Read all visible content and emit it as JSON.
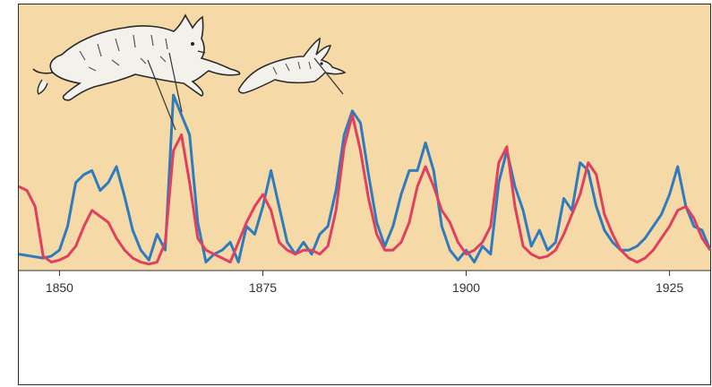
{
  "chart_data": {
    "type": "line",
    "title": "",
    "xlabel": "",
    "ylabel": "",
    "xlim": [
      1845,
      1930
    ],
    "ylim": [
      0,
      100
    ],
    "grid": false,
    "background_color": "#f5d9a6",
    "x_ticks": [
      {
        "value": 1850,
        "label": "1850"
      },
      {
        "value": 1875,
        "label": "1875"
      },
      {
        "value": 1900,
        "label": "1900"
      },
      {
        "value": 1925,
        "label": "1925"
      }
    ],
    "illustrations": [
      "lynx-illustration",
      "hare-illustration"
    ],
    "series": [
      {
        "color": "#2f7bbf",
        "x": [
          1845,
          1848,
          1849,
          1850,
          1851,
          1852,
          1853,
          1854,
          1855,
          1856,
          1857,
          1858,
          1859,
          1860,
          1861,
          1862,
          1863,
          1864,
          1865,
          1866,
          1867,
          1868,
          1869,
          1870,
          1871,
          1872,
          1873,
          1874,
          1875,
          1876,
          1877,
          1878,
          1879,
          1880,
          1881,
          1882,
          1883,
          1884,
          1885,
          1886,
          1887,
          1888,
          1889,
          1890,
          1891,
          1892,
          1893,
          1894,
          1895,
          1896,
          1897,
          1898,
          1899,
          1900,
          1901,
          1902,
          1903,
          1904,
          1905,
          1906,
          1907,
          1908,
          1909,
          1910,
          1911,
          1912,
          1913,
          1914,
          1915,
          1916,
          1917,
          1918,
          1919,
          1920,
          1921,
          1922,
          1923,
          1924,
          1925,
          1926,
          1927,
          1928,
          1929,
          1930
        ],
        "values": [
          6,
          4,
          5,
          8,
          20,
          42,
          46,
          48,
          38,
          42,
          50,
          35,
          18,
          8,
          3,
          16,
          8,
          86,
          76,
          66,
          22,
          2,
          6,
          8,
          12,
          2,
          20,
          16,
          30,
          48,
          30,
          12,
          6,
          12,
          6,
          16,
          20,
          38,
          66,
          78,
          72,
          46,
          22,
          10,
          20,
          36,
          48,
          48,
          62,
          48,
          20,
          8,
          3,
          8,
          2,
          10,
          6,
          42,
          58,
          40,
          28,
          10,
          18,
          8,
          12,
          34,
          28,
          52,
          48,
          30,
          18,
          12,
          8,
          8,
          10,
          14,
          20,
          26,
          36,
          50,
          30,
          20,
          18,
          8
        ]
      },
      {
        "color": "#e0405f",
        "x": [
          1845,
          1846,
          1847,
          1848,
          1849,
          1850,
          1851,
          1852,
          1853,
          1854,
          1855,
          1856,
          1857,
          1858,
          1859,
          1860,
          1861,
          1862,
          1863,
          1864,
          1865,
          1866,
          1867,
          1868,
          1869,
          1870,
          1871,
          1872,
          1873,
          1874,
          1875,
          1876,
          1877,
          1878,
          1879,
          1880,
          1881,
          1882,
          1883,
          1884,
          1885,
          1886,
          1887,
          1888,
          1889,
          1890,
          1891,
          1892,
          1893,
          1894,
          1895,
          1896,
          1897,
          1898,
          1899,
          1900,
          1901,
          1902,
          1903,
          1904,
          1905,
          1906,
          1907,
          1908,
          1909,
          1910,
          1911,
          1912,
          1913,
          1914,
          1915,
          1916,
          1917,
          1918,
          1919,
          1920,
          1921,
          1922,
          1923,
          1924,
          1925,
          1926,
          1927,
          1928,
          1929,
          1930
        ],
        "values": [
          40,
          38,
          30,
          5,
          2,
          3,
          5,
          10,
          20,
          28,
          25,
          22,
          14,
          8,
          4,
          2,
          1,
          2,
          12,
          58,
          66,
          42,
          14,
          8,
          6,
          4,
          2,
          12,
          22,
          30,
          36,
          28,
          12,
          8,
          6,
          8,
          8,
          6,
          10,
          28,
          60,
          76,
          58,
          34,
          16,
          8,
          8,
          12,
          22,
          40,
          50,
          40,
          28,
          22,
          12,
          6,
          8,
          12,
          20,
          52,
          60,
          30,
          10,
          6,
          4,
          5,
          8,
          16,
          26,
          36,
          52,
          46,
          26,
          16,
          8,
          4,
          2,
          4,
          8,
          14,
          20,
          28,
          30,
          24,
          14,
          8
        ]
      }
    ]
  }
}
